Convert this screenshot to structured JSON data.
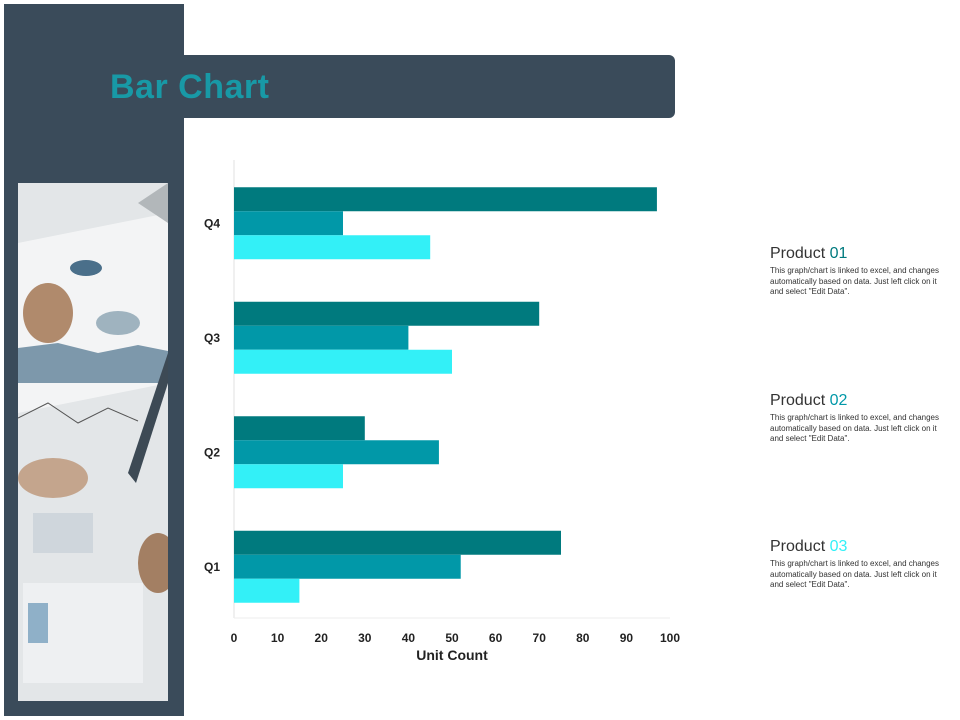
{
  "page": {
    "title": "Bar Chart"
  },
  "colors": {
    "panel": "#3a4b5a",
    "title": "#1899a6",
    "series": [
      "#007a7e",
      "#0198a8",
      "#33f0f7"
    ]
  },
  "chart_data": {
    "type": "bar",
    "orientation": "horizontal",
    "categories": [
      "Q1",
      "Q2",
      "Q3",
      "Q4"
    ],
    "series": [
      {
        "name": "Product 01",
        "values": [
          75,
          30,
          70,
          97
        ]
      },
      {
        "name": "Product 02",
        "values": [
          52,
          47,
          40,
          25
        ]
      },
      {
        "name": "Product 03",
        "values": [
          15,
          25,
          50,
          45
        ]
      }
    ],
    "xlabel": "Unit Count",
    "xlim": [
      0,
      100
    ],
    "xticks": [
      0,
      10,
      20,
      30,
      40,
      50,
      60,
      70,
      80,
      90,
      100
    ],
    "grid": false,
    "legend": "right"
  },
  "legend": [
    {
      "name": "Product",
      "num": "01",
      "color": "#007a7e",
      "desc": "This graph/chart is linked to excel, and changes automatically based on data. Just left click on it and select \"Edit Data\"."
    },
    {
      "name": "Product",
      "num": "02",
      "color": "#0198a8",
      "desc": "This graph/chart is linked to excel, and changes automatically based on data. Just left click on it and select \"Edit Data\"."
    },
    {
      "name": "Product",
      "num": "03",
      "color": "#33f0f7",
      "desc": "This graph/chart is linked to excel, and changes automatically based on data. Just left click on it and select \"Edit Data\"."
    }
  ]
}
